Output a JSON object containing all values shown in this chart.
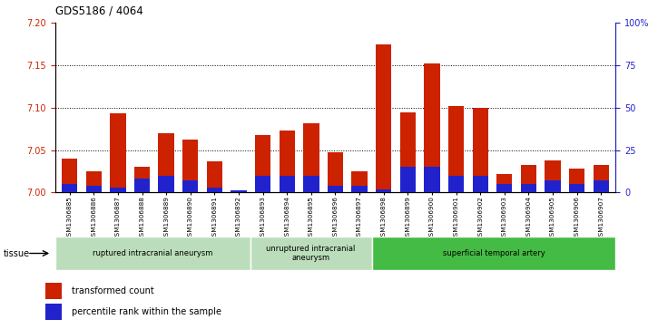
{
  "title": "GDS5186 / 4064",
  "samples": [
    "GSM1306885",
    "GSM1306886",
    "GSM1306887",
    "GSM1306888",
    "GSM1306889",
    "GSM1306890",
    "GSM1306891",
    "GSM1306892",
    "GSM1306893",
    "GSM1306894",
    "GSM1306895",
    "GSM1306896",
    "GSM1306897",
    "GSM1306898",
    "GSM1306899",
    "GSM1306900",
    "GSM1306901",
    "GSM1306902",
    "GSM1306903",
    "GSM1306904",
    "GSM1306905",
    "GSM1306906",
    "GSM1306907"
  ],
  "transformed_count": [
    7.04,
    7.025,
    7.093,
    7.03,
    7.07,
    7.062,
    7.037,
    7.003,
    7.068,
    7.073,
    7.082,
    7.047,
    7.025,
    7.175,
    7.095,
    7.152,
    7.102,
    7.1,
    7.022,
    7.032,
    7.038,
    7.028,
    7.033
  ],
  "percentile_rank": [
    5,
    4,
    3,
    8,
    10,
    7,
    3,
    1,
    10,
    10,
    10,
    4,
    4,
    2,
    15,
    15,
    10,
    10,
    5,
    5,
    7,
    5,
    7
  ],
  "groups": [
    {
      "label": "ruptured intracranial aneurysm",
      "start": 0,
      "end": 8,
      "color": "#cceecc"
    },
    {
      "label": "unruptured intracranial\naneurysm",
      "start": 8,
      "end": 13,
      "color": "#cceecc"
    },
    {
      "label": "superficial temporal artery",
      "start": 13,
      "end": 23,
      "color": "#44bb44"
    }
  ],
  "ylim_left": [
    7.0,
    7.2
  ],
  "ylim_right": [
    0,
    100
  ],
  "yticks_left": [
    7.0,
    7.05,
    7.1,
    7.15,
    7.2
  ],
  "yticks_right": [
    0,
    25,
    50,
    75,
    100
  ],
  "ytick_labels_right": [
    "0",
    "25",
    "50",
    "75",
    "100%"
  ],
  "bar_color_red": "#cc2200",
  "bar_color_blue": "#2222cc",
  "bg_color": "#ffffff",
  "grid_color": "#000000",
  "left_axis_color": "#cc2200",
  "right_axis_color": "#2222cc"
}
